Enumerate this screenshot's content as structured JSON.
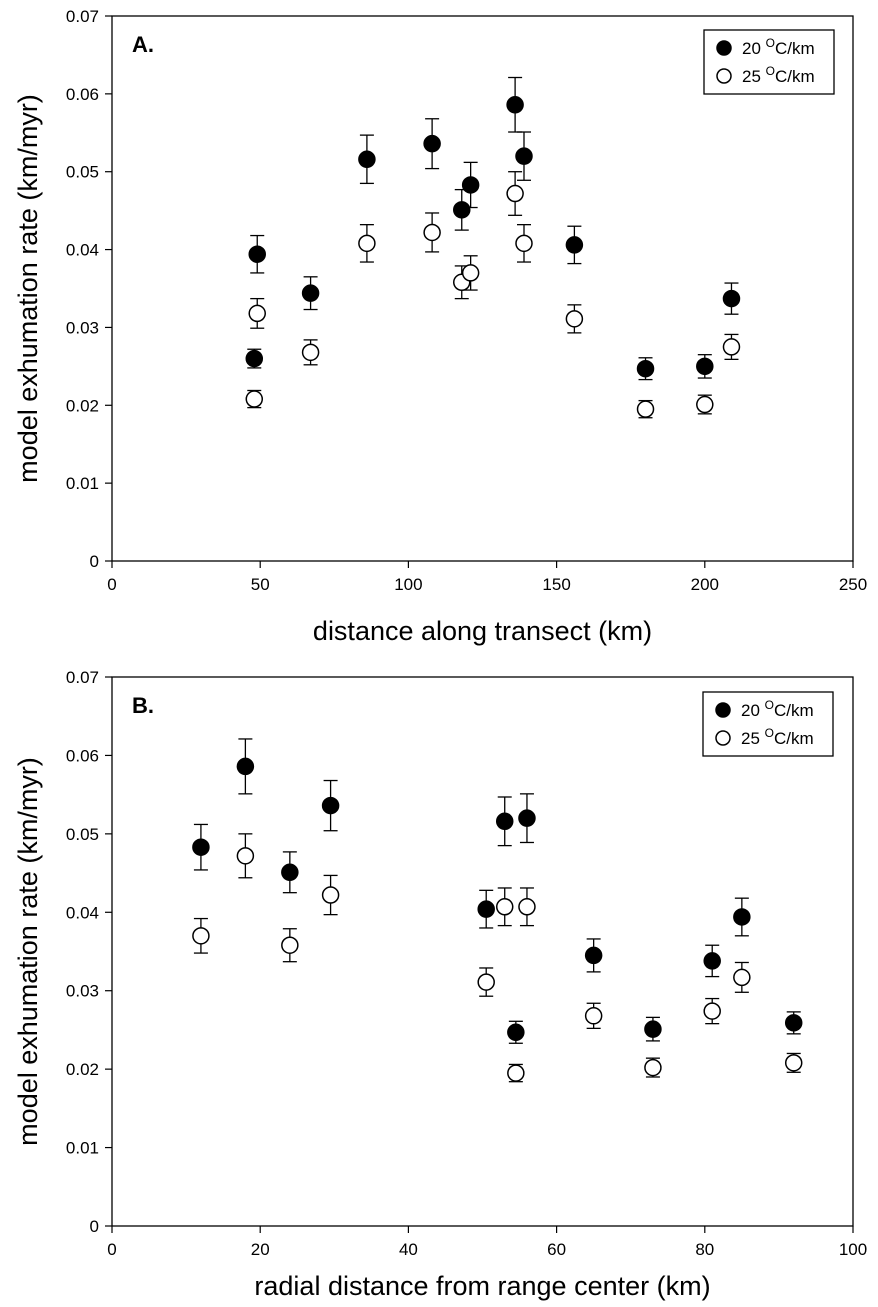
{
  "chart_data": [
    {
      "type": "scatter",
      "panel_label": "A.",
      "xlabel": "distance along transect (km)",
      "ylabel": "model exhumation rate (km/myr)",
      "xlim": [
        0,
        250
      ],
      "ylim": [
        0,
        0.07
      ],
      "xticks": [
        "0",
        "50",
        "100",
        "150",
        "200",
        "250"
      ],
      "yticks": [
        "0",
        "0.01",
        "0.02",
        "0.03",
        "0.04",
        "0.05",
        "0.06",
        "0.07"
      ],
      "grid": false,
      "legend_position": "top-right",
      "series": [
        {
          "name": "20 °C/km",
          "legend_main": "20 ",
          "legend_sup": "O",
          "legend_unit": "C/km",
          "marker": "filled-circle",
          "x": [
            48,
            49,
            67,
            86,
            108,
            118,
            121,
            136,
            139,
            156,
            180,
            200,
            209
          ],
          "y": [
            0.026,
            0.0394,
            0.0344,
            0.0516,
            0.0536,
            0.0451,
            0.0483,
            0.0586,
            0.052,
            0.0406,
            0.0247,
            0.025,
            0.0337
          ],
          "err": [
            0.0012,
            0.0024,
            0.0021,
            0.0031,
            0.0032,
            0.0026,
            0.0029,
            0.0035,
            0.0031,
            0.0024,
            0.0014,
            0.0015,
            0.002
          ]
        },
        {
          "name": "25 °C/km",
          "legend_main": "25 ",
          "legend_sup": "O",
          "legend_unit": "C/km",
          "marker": "open-circle",
          "x": [
            48,
            49,
            67,
            86,
            108,
            118,
            121,
            136,
            139,
            156,
            180,
            200,
            209
          ],
          "y": [
            0.0208,
            0.0318,
            0.0268,
            0.0408,
            0.0422,
            0.0358,
            0.037,
            0.0472,
            0.0408,
            0.0311,
            0.0195,
            0.0201,
            0.0275
          ],
          "err": [
            0.0011,
            0.0019,
            0.0016,
            0.0024,
            0.0025,
            0.0021,
            0.0022,
            0.0028,
            0.0024,
            0.0018,
            0.0011,
            0.0012,
            0.0016
          ]
        }
      ]
    },
    {
      "type": "scatter",
      "panel_label": "B.",
      "xlabel": "radial distance from range center (km)",
      "ylabel": "model exhumation rate (km/myr)",
      "xlim": [
        0,
        100
      ],
      "ylim": [
        0,
        0.07
      ],
      "xticks": [
        "0",
        "20",
        "40",
        "60",
        "80",
        "100"
      ],
      "yticks": [
        "0",
        "0.01",
        "0.02",
        "0.03",
        "0.04",
        "0.05",
        "0.06",
        "0.07"
      ],
      "grid": false,
      "legend_position": "top-right",
      "series": [
        {
          "name": "20 °C/km",
          "legend_main": "20 ",
          "legend_sup": "O",
          "legend_unit": "C/km",
          "marker": "filled-circle",
          "x": [
            12,
            18,
            24,
            29.5,
            50.5,
            53,
            54.5,
            56,
            65,
            73,
            81,
            85,
            92
          ],
          "y": [
            0.0483,
            0.0586,
            0.0451,
            0.0536,
            0.0404,
            0.0516,
            0.0247,
            0.052,
            0.0345,
            0.0251,
            0.0338,
            0.0394,
            0.0259
          ],
          "err": [
            0.0029,
            0.0035,
            0.0026,
            0.0032,
            0.0024,
            0.0031,
            0.0014,
            0.0031,
            0.0021,
            0.0015,
            0.002,
            0.0024,
            0.0014
          ]
        },
        {
          "name": "25 °C/km",
          "legend_main": "25 ",
          "legend_sup": "O",
          "legend_unit": "C/km",
          "marker": "open-circle",
          "x": [
            12,
            18,
            24,
            29.5,
            50.5,
            53,
            54.5,
            56,
            65,
            73,
            81,
            85,
            92
          ],
          "y": [
            0.037,
            0.0472,
            0.0358,
            0.0422,
            0.0311,
            0.0407,
            0.0195,
            0.0407,
            0.0268,
            0.0202,
            0.0274,
            0.0317,
            0.0208
          ],
          "err": [
            0.0022,
            0.0028,
            0.0021,
            0.0025,
            0.0018,
            0.0024,
            0.0011,
            0.0024,
            0.0016,
            0.0012,
            0.0016,
            0.0019,
            0.0012
          ]
        }
      ]
    }
  ]
}
